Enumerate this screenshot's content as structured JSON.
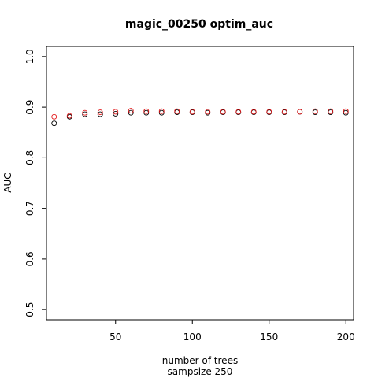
{
  "chart_data": {
    "type": "scatter",
    "title": "magic_00250 optim_auc",
    "xlabel": "number of trees",
    "xlabel2": "sampsize 250",
    "ylabel": "AUC",
    "xlim": [
      5,
      205
    ],
    "ylim": [
      0.48,
      1.02
    ],
    "xticks": [
      50,
      100,
      150,
      200
    ],
    "yticks": [
      0.5,
      0.6,
      0.7,
      0.8,
      0.9,
      1.0
    ],
    "ytick_labels": [
      "0.5",
      "0.6",
      "0.7",
      "0.8",
      "0.9",
      "1.0"
    ],
    "grid": false,
    "x": [
      10,
      20,
      30,
      40,
      50,
      60,
      70,
      80,
      90,
      100,
      110,
      120,
      130,
      140,
      150,
      160,
      170,
      180,
      190,
      200
    ],
    "series": [
      {
        "color": "#000000",
        "values": [
          0.868,
          0.881,
          0.886,
          0.886,
          0.887,
          0.889,
          0.889,
          0.889,
          0.89,
          0.89,
          0.889,
          0.89,
          0.89,
          0.89,
          0.89,
          0.89,
          0.891,
          0.89,
          0.89,
          0.889
        ]
      },
      {
        "color": "#e31a1c",
        "values": [
          0.881,
          0.883,
          0.889,
          0.89,
          0.891,
          0.893,
          0.892,
          0.892,
          0.892,
          0.891,
          0.891,
          0.891,
          0.891,
          0.891,
          0.891,
          0.891,
          0.891,
          0.892,
          0.892,
          0.892
        ]
      }
    ]
  }
}
